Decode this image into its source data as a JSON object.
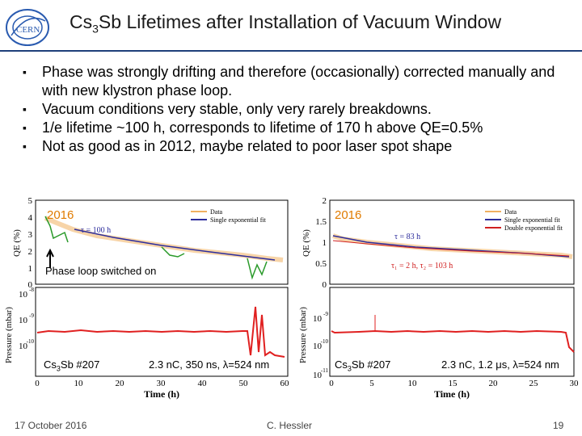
{
  "header": {
    "logo_text": "CERN",
    "title_pre": "Cs",
    "title_sub": "3",
    "title_post": "Sb Lifetimes after Installation of Vacuum Window"
  },
  "bullets": [
    "Phase was strongly drifting and therefore (occasionally) corrected manually and with new klystron phase loop.",
    "Vacuum conditions very stable, only very rarely breakdowns.",
    "1/e lifetime ~100 h, corresponds to lifetime of 170 h above QE=0.5%",
    "Not as good as in 2012, maybe related to poor laser spot shape"
  ],
  "left_plot": {
    "year_label": "2016",
    "tau_label": "τ = 100 h",
    "legend_data": "Data",
    "legend_fit": "Single exponential fit",
    "qe_ylabel": "QE (%)",
    "p_ylabel": "Pressure (mbar)",
    "xlabel": "Time (h)",
    "qe_ticks": [
      "5",
      "4",
      "3",
      "2",
      "1",
      "0"
    ],
    "p_ticks": [
      "10",
      "10",
      "10"
    ],
    "p_exp": [
      "-8",
      "-9",
      "-10"
    ],
    "x_ticks": [
      "0",
      "10",
      "20",
      "30",
      "40",
      "50",
      "60"
    ],
    "annotation": "Phase loop switched on",
    "sample_pre": "Cs",
    "sample_sub": "3",
    "sample_post": "Sb #207",
    "beam_params": "2.3 nC, 350 ns, λ=524 nm"
  },
  "right_plot": {
    "year_label": "2016",
    "tau_label": "τ = 83 h",
    "tau2_label": "τ₁ = 2 h, τ₂ = 103 h",
    "legend_data": "Data",
    "legend_fit1": "Single exponential fit",
    "legend_fit2": "Double exponential fit",
    "qe_ylabel": "QE (%)",
    "p_ylabel": "Pressure (mbar)",
    "xlabel": "Time (h)",
    "qe_ticks": [
      "2",
      "1.5",
      "1",
      "0.5",
      "0"
    ],
    "p_ticks": [
      "10",
      "10",
      "10"
    ],
    "p_exp": [
      "-9",
      "-10",
      "-11"
    ],
    "x_ticks": [
      "0",
      "5",
      "10",
      "15",
      "20",
      "25",
      "30"
    ],
    "sample_pre": "Cs",
    "sample_sub": "3",
    "sample_post": "Sb #207",
    "beam_params": "2.3 nC, 1.2 μs, λ=524 nm"
  },
  "footer": {
    "date": "17 October 2016",
    "author": "C. Hessler",
    "page": "19"
  },
  "colors": {
    "rule": "#1f3f7a",
    "data": "#f0b060",
    "fit_single": "#2d2d9c",
    "fit_double": "#d02020",
    "green": "#2a9a2a",
    "pressure": "#e02020",
    "year": "#e07b00"
  }
}
